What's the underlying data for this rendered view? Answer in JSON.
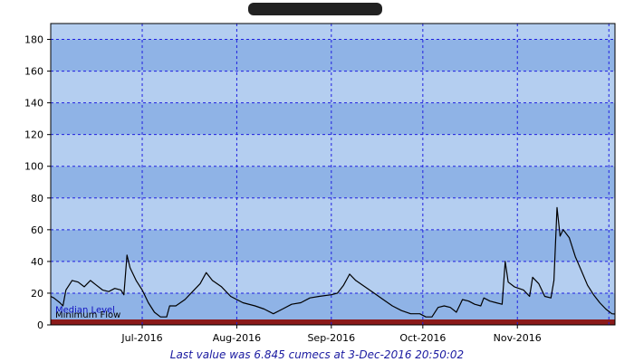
{
  "title_redacted": true,
  "footer_text": "Last value was 6.845 cumecs at  3-Dec-2016 20:50:02",
  "colors": {
    "plot_bg_light": "#b4cef0",
    "plot_bg_dark": "#8fb3e6",
    "grid": "#2020e0",
    "min_flow_band": "#fdf3a4",
    "bottom_bar": "#8b1a1a",
    "line": "#000000",
    "footer_text": "#1a1aa0",
    "median_label": "#1010c0"
  },
  "chart_data": {
    "type": "line",
    "title": "",
    "xlabel": "",
    "ylabel": "",
    "ylim": [
      0,
      190
    ],
    "yticks": [
      0,
      20,
      40,
      60,
      80,
      100,
      120,
      140,
      160,
      180
    ],
    "xlim": [
      "2016-06-01",
      "2016-12-03"
    ],
    "xticks": [
      {
        "label": "Jul-2016",
        "date": "2016-07-01"
      },
      {
        "label": "Aug-2016",
        "date": "2016-08-01"
      },
      {
        "label": "Sep-2016",
        "date": "2016-09-01"
      },
      {
        "label": "Oct-2016",
        "date": "2016-10-01"
      },
      {
        "label": "Nov-2016",
        "date": "2016-11-01"
      }
    ],
    "grid": true,
    "reference_bands": [
      {
        "label": "Median Level",
        "value": 7
      },
      {
        "label": "Minimum Flow",
        "from": 0,
        "to": 3
      }
    ],
    "series": [
      {
        "points": [
          [
            "2016-06-01",
            18
          ],
          [
            "2016-06-02",
            17
          ],
          [
            "2016-06-04",
            14
          ],
          [
            "2016-06-05",
            12
          ],
          [
            "2016-06-06",
            22
          ],
          [
            "2016-06-08",
            28
          ],
          [
            "2016-06-10",
            27
          ],
          [
            "2016-06-12",
            24
          ],
          [
            "2016-06-14",
            28
          ],
          [
            "2016-06-16",
            25
          ],
          [
            "2016-06-18",
            22
          ],
          [
            "2016-06-20",
            21
          ],
          [
            "2016-06-22",
            23
          ],
          [
            "2016-06-24",
            22
          ],
          [
            "2016-06-25",
            19
          ],
          [
            "2016-06-26",
            44
          ],
          [
            "2016-06-27",
            36
          ],
          [
            "2016-06-29",
            28
          ],
          [
            "2016-07-01",
            22
          ],
          [
            "2016-07-03",
            14
          ],
          [
            "2016-07-05",
            8
          ],
          [
            "2016-07-07",
            5
          ],
          [
            "2016-07-09",
            5
          ],
          [
            "2016-07-10",
            12
          ],
          [
            "2016-07-12",
            12
          ],
          [
            "2016-07-15",
            16
          ],
          [
            "2016-07-18",
            22
          ],
          [
            "2016-07-20",
            26
          ],
          [
            "2016-07-22",
            33
          ],
          [
            "2016-07-24",
            28
          ],
          [
            "2016-07-27",
            24
          ],
          [
            "2016-07-30",
            18
          ],
          [
            "2016-08-03",
            14
          ],
          [
            "2016-08-07",
            12
          ],
          [
            "2016-08-10",
            10
          ],
          [
            "2016-08-13",
            7
          ],
          [
            "2016-08-16",
            10
          ],
          [
            "2016-08-19",
            13
          ],
          [
            "2016-08-22",
            14
          ],
          [
            "2016-08-25",
            17
          ],
          [
            "2016-08-28",
            18
          ],
          [
            "2016-09-01",
            19
          ],
          [
            "2016-09-03",
            20
          ],
          [
            "2016-09-05",
            25
          ],
          [
            "2016-09-07",
            32
          ],
          [
            "2016-09-09",
            28
          ],
          [
            "2016-09-12",
            24
          ],
          [
            "2016-09-15",
            20
          ],
          [
            "2016-09-18",
            16
          ],
          [
            "2016-09-21",
            12
          ],
          [
            "2016-09-24",
            9
          ],
          [
            "2016-09-27",
            7
          ],
          [
            "2016-09-30",
            7
          ],
          [
            "2016-10-02",
            5
          ],
          [
            "2016-10-04",
            5
          ],
          [
            "2016-10-06",
            11
          ],
          [
            "2016-10-08",
            12
          ],
          [
            "2016-10-10",
            11
          ],
          [
            "2016-10-12",
            8
          ],
          [
            "2016-10-14",
            16
          ],
          [
            "2016-10-16",
            15
          ],
          [
            "2016-10-18",
            13
          ],
          [
            "2016-10-20",
            12
          ],
          [
            "2016-10-21",
            17
          ],
          [
            "2016-10-23",
            15
          ],
          [
            "2016-10-25",
            14
          ],
          [
            "2016-10-27",
            13
          ],
          [
            "2016-10-28",
            40
          ],
          [
            "2016-10-29",
            27
          ],
          [
            "2016-10-31",
            24
          ],
          [
            "2016-11-03",
            22
          ],
          [
            "2016-11-05",
            18
          ],
          [
            "2016-11-06",
            30
          ],
          [
            "2016-11-08",
            26
          ],
          [
            "2016-11-10",
            18
          ],
          [
            "2016-11-12",
            17
          ],
          [
            "2016-11-13",
            28
          ],
          [
            "2016-11-14",
            74
          ],
          [
            "2016-11-15",
            56
          ],
          [
            "2016-11-16",
            60
          ],
          [
            "2016-11-18",
            55
          ],
          [
            "2016-11-20",
            43
          ],
          [
            "2016-11-22",
            34
          ],
          [
            "2016-11-24",
            25
          ],
          [
            "2016-11-26",
            19
          ],
          [
            "2016-11-28",
            14
          ],
          [
            "2016-11-30",
            10
          ],
          [
            "2016-12-02",
            7
          ],
          [
            "2016-12-03",
            6.845
          ]
        ]
      }
    ]
  }
}
